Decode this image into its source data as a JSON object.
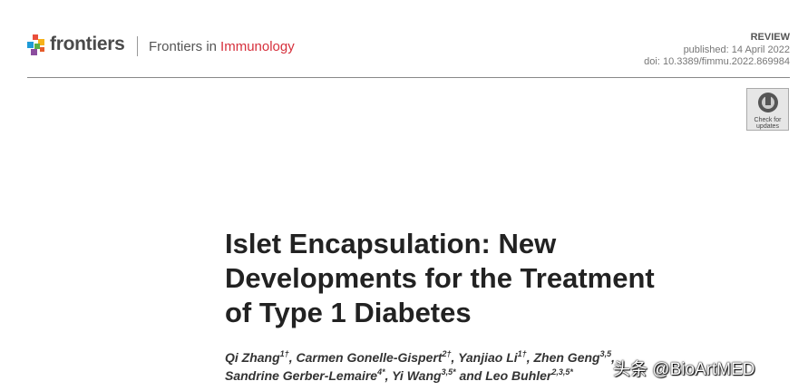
{
  "header": {
    "logo_text": "frontiers",
    "journal_prefix": "Frontiers in",
    "journal_name": "Immunology"
  },
  "meta": {
    "article_type": "REVIEW",
    "published": "published: 14 April 2022",
    "doi": "doi: 10.3389/fimmu.2022.869984"
  },
  "badge": {
    "lines": [
      "Check for",
      "updates"
    ]
  },
  "title": {
    "lines": [
      "Islet Encapsulation: New",
      "Developments for the Treatment",
      "of Type 1 Diabetes"
    ]
  },
  "authors": {
    "lines": [
      [
        {
          "name": "Qi Zhang",
          "sup": "1†",
          "after": ", "
        },
        {
          "name": "Carmen Gonelle-Gispert",
          "sup": "2†",
          "after": ", "
        },
        {
          "name": "Yanjiao Li",
          "sup": "1†",
          "after": ", "
        },
        {
          "name": "Zhen Geng",
          "sup": "3,5",
          "after": ","
        }
      ],
      [
        {
          "name": "Sandrine Gerber-Lemaire",
          "sup": "4*",
          "after": ", "
        },
        {
          "name": "Yi Wang",
          "sup": "3,5*",
          "after": " and "
        },
        {
          "name": "Leo Buhler",
          "sup": "2,3,5*",
          "after": ""
        }
      ]
    ]
  },
  "watermark": "头条 @BioArtMED"
}
